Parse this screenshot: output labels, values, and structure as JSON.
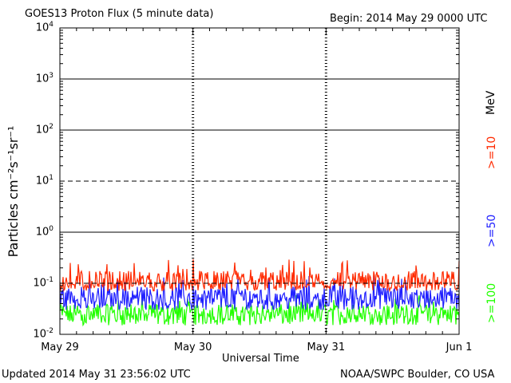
{
  "header": {
    "title": "GOES13 Proton Flux (5 minute data)",
    "begin": "Begin: 2014 May 29 0000 UTC"
  },
  "footer": {
    "updated": "Updated 2014 May 31 23:56:02 UTC",
    "credit": "NOAA/SWPC Boulder, CO USA"
  },
  "legend": {
    "unit": "MeV",
    "items": [
      {
        "label": ">=10",
        "color": "#ff2a00"
      },
      {
        "label": ">=50",
        "color": "#2020ff"
      },
      {
        "label": ">=100",
        "color": "#22ff00"
      }
    ]
  },
  "chart_data": {
    "type": "line",
    "title": "GOES13 Proton Flux (5 minute data)",
    "xlabel": "Universal Time",
    "ylabel": "Particles cm⁻²s⁻¹sr⁻¹",
    "yscale": "log",
    "ylim": [
      0.01,
      10000
    ],
    "yticks": [
      {
        "base": "10",
        "exp": "-2"
      },
      {
        "base": "10",
        "exp": "-1"
      },
      {
        "base": "10",
        "exp": "0"
      },
      {
        "base": "10",
        "exp": "1"
      },
      {
        "base": "10",
        "exp": "2"
      },
      {
        "base": "10",
        "exp": "3"
      },
      {
        "base": "10",
        "exp": "4"
      }
    ],
    "xticks": [
      "May 29",
      "May 30",
      "May 31",
      "Jun 1"
    ],
    "xlim": [
      "2014-05-29",
      "2014-06-01"
    ],
    "threshold_lines": [
      {
        "value": 10,
        "style": "dashed"
      },
      {
        "value": 0.1,
        "style": "dashed"
      }
    ],
    "grid_lines": [
      1,
      100,
      1000
    ],
    "series": [
      {
        "name": ">=10 MeV",
        "color": "#ff2a00",
        "typical": 0.1,
        "low": 0.07,
        "high": 0.3
      },
      {
        "name": ">=50 MeV",
        "color": "#2020ff",
        "typical": 0.05,
        "low": 0.03,
        "high": 0.15
      },
      {
        "name": ">=100 MeV",
        "color": "#22ff00",
        "typical": 0.025,
        "low": 0.015,
        "high": 0.06
      }
    ]
  }
}
